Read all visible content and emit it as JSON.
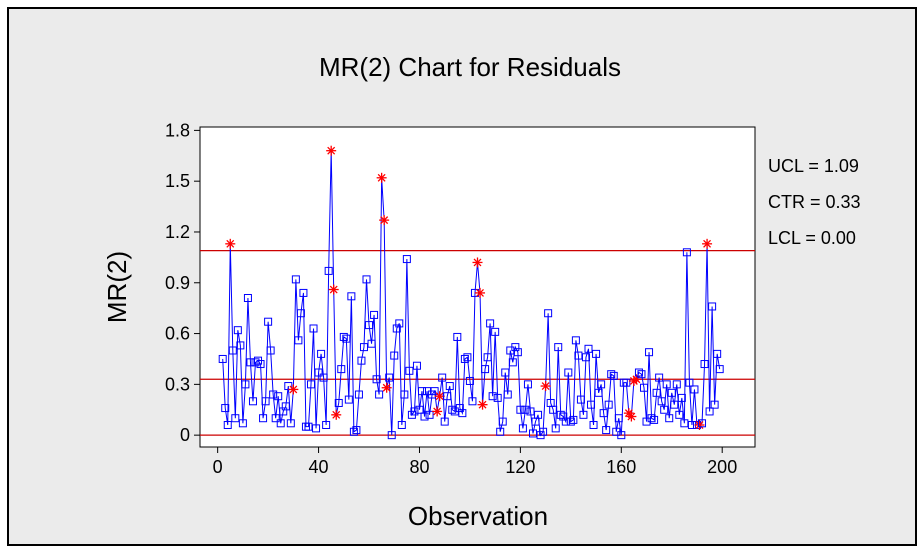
{
  "chart_data": {
    "type": "control",
    "title": "MR(2) Chart for Residuals",
    "x_label": "Observation",
    "y_label": "MR(2)",
    "xlim": [
      -7,
      213
    ],
    "ylim": [
      -0.07,
      1.82
    ],
    "xticks": [
      0,
      40,
      80,
      120,
      160,
      200
    ],
    "yticks": [
      0,
      0.3,
      0.6,
      0.9,
      1.2,
      1.5,
      1.8
    ],
    "color": "#0000ff",
    "flag_color": "#ff0000",
    "limit_color": "#cc0000",
    "control_limits": [
      {
        "label": "UCL = 1.09",
        "value": 1.09
      },
      {
        "label": "CTR = 0.33",
        "value": 0.33
      },
      {
        "label": "LCL = 0.00",
        "value": 0.0
      }
    ],
    "x": [
      2,
      3,
      4,
      5,
      6,
      7,
      8,
      9,
      10,
      11,
      12,
      13,
      14,
      15,
      16,
      17,
      18,
      19,
      20,
      21,
      22,
      23,
      24,
      25,
      26,
      27,
      28,
      29,
      30,
      31,
      32,
      33,
      34,
      35,
      36,
      37,
      38,
      39,
      40,
      41,
      42,
      43,
      44,
      45,
      46,
      47,
      48,
      49,
      50,
      51,
      52,
      53,
      54,
      55,
      56,
      57,
      58,
      59,
      60,
      61,
      62,
      63,
      64,
      65,
      66,
      67,
      68,
      69,
      70,
      71,
      72,
      73,
      74,
      75,
      76,
      77,
      78,
      79,
      80,
      81,
      82,
      83,
      84,
      85,
      86,
      87,
      88,
      89,
      90,
      91,
      92,
      93,
      94,
      95,
      96,
      97,
      98,
      99,
      100,
      101,
      102,
      103,
      104,
      105,
      106,
      107,
      108,
      109,
      110,
      111,
      112,
      113,
      114,
      115,
      116,
      117,
      118,
      119,
      120,
      121,
      122,
      123,
      124,
      125,
      126,
      127,
      128,
      129,
      130,
      131,
      132,
      133,
      134,
      135,
      136,
      137,
      138,
      139,
      140,
      141,
      142,
      143,
      144,
      145,
      146,
      147,
      148,
      149,
      150,
      151,
      152,
      153,
      154,
      155,
      156,
      157,
      158,
      159,
      160,
      161,
      162,
      163,
      164,
      165,
      166,
      167,
      168,
      169,
      170,
      171,
      172,
      173,
      174,
      175,
      176,
      177,
      178,
      179,
      180,
      181,
      182,
      183,
      184,
      185,
      186,
      187,
      188,
      189,
      190,
      191,
      192,
      193,
      194,
      195,
      196,
      197,
      198,
      199
    ],
    "values": [
      0.45,
      0.16,
      0.06,
      1.13,
      0.5,
      0.1,
      0.62,
      0.53,
      0.07,
      0.3,
      0.81,
      0.43,
      0.2,
      0.43,
      0.44,
      0.42,
      0.1,
      0.2,
      0.67,
      0.5,
      0.24,
      0.1,
      0.23,
      0.07,
      0.14,
      0.17,
      0.29,
      0.07,
      0.27,
      0.92,
      0.56,
      0.72,
      0.84,
      0.05,
      0.05,
      0.3,
      0.63,
      0.04,
      0.37,
      0.48,
      0.34,
      0.06,
      0.97,
      1.68,
      0.86,
      0.12,
      0.19,
      0.39,
      0.58,
      0.57,
      0.21,
      0.82,
      0.02,
      0.03,
      0.24,
      0.44,
      0.52,
      0.92,
      0.65,
      0.54,
      0.71,
      0.33,
      0.24,
      1.52,
      1.27,
      0.28,
      0.34,
      0.0,
      0.47,
      0.63,
      0.66,
      0.06,
      0.24,
      1.04,
      0.38,
      0.12,
      0.14,
      0.41,
      0.15,
      0.26,
      0.11,
      0.26,
      0.12,
      0.24,
      0.26,
      0.14,
      0.23,
      0.34,
      0.08,
      0.23,
      0.29,
      0.15,
      0.14,
      0.58,
      0.16,
      0.13,
      0.45,
      0.46,
      0.32,
      0.2,
      0.84,
      1.02,
      0.84,
      0.18,
      0.39,
      0.46,
      0.66,
      0.23,
      0.61,
      0.22,
      0.02,
      0.08,
      0.37,
      0.24,
      0.5,
      0.43,
      0.52,
      0.49,
      0.15,
      0.04,
      0.15,
      0.3,
      0.14,
      0.01,
      0.08,
      0.12,
      0.0,
      0.02,
      0.29,
      0.72,
      0.19,
      0.15,
      0.04,
      0.52,
      0.12,
      0.11,
      0.08,
      0.37,
      0.08,
      0.09,
      0.56,
      0.47,
      0.21,
      0.12,
      0.46,
      0.51,
      0.18,
      0.06,
      0.48,
      0.25,
      0.3,
      0.13,
      0.03,
      0.18,
      0.36,
      0.35,
      0.02,
      0.1,
      0.0,
      0.31,
      0.31,
      0.13,
      0.11,
      0.32,
      0.33,
      0.37,
      0.36,
      0.28,
      0.08,
      0.49,
      0.1,
      0.09,
      0.25,
      0.34,
      0.2,
      0.15,
      0.3,
      0.1,
      0.25,
      0.18,
      0.3,
      0.12,
      0.22,
      0.07,
      1.08,
      0.31,
      0.06,
      0.27,
      0.06,
      0.06,
      0.07,
      0.42,
      1.13,
      0.14,
      0.76,
      0.18,
      0.48,
      0.39
    ],
    "flagged": [
      5,
      30,
      45,
      46,
      47,
      65,
      66,
      67,
      87,
      88,
      103,
      104,
      105,
      130,
      163,
      164,
      165,
      166,
      191,
      194
    ]
  }
}
